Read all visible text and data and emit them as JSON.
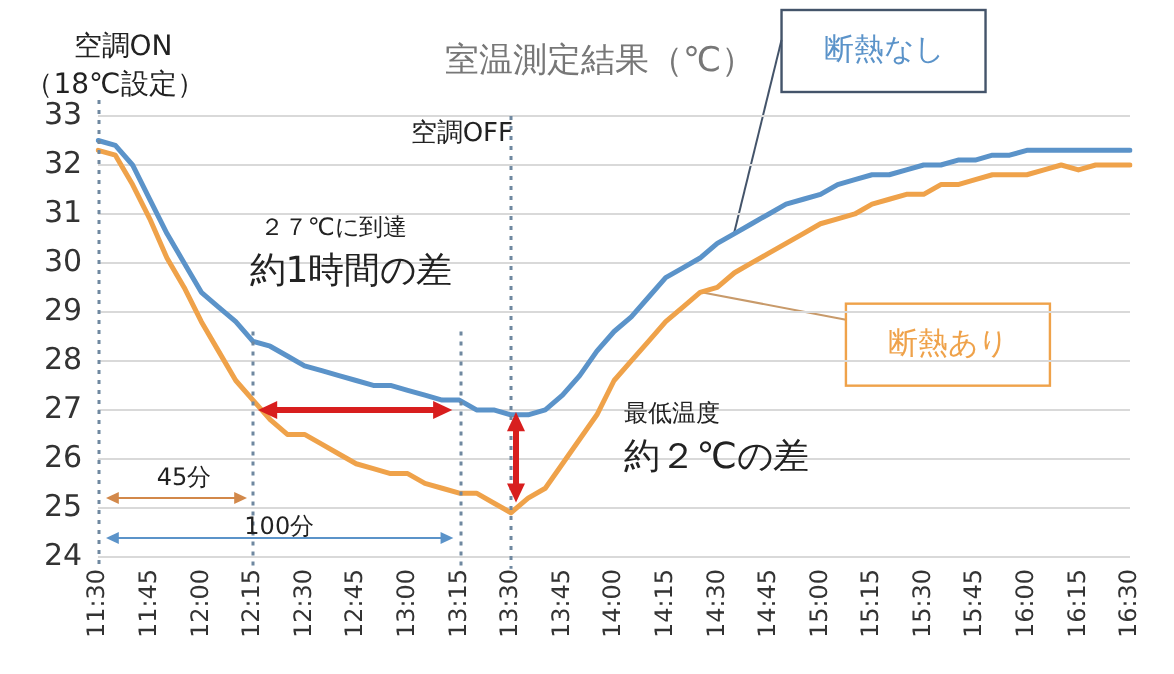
{
  "chart_data": {
    "type": "line",
    "title": "室温測定結果（℃）",
    "categories": [
      "11:30",
      null,
      null,
      "11:45",
      null,
      null,
      "12:00",
      null,
      null,
      "12:15",
      null,
      null,
      "12:30",
      null,
      null,
      "12:45",
      null,
      null,
      "13:00",
      null,
      null,
      "13:15",
      null,
      null,
      "13:30",
      null,
      null,
      "13:45",
      null,
      null,
      "14:00",
      null,
      null,
      "14:15",
      null,
      null,
      "14:30",
      null,
      null,
      "14:45",
      null,
      null,
      "15:00",
      null,
      null,
      "15:15",
      null,
      null,
      "15:30",
      null,
      null,
      "15:45",
      null,
      null,
      "16:00",
      null,
      null,
      "16:15",
      null,
      null,
      "16:30"
    ],
    "series": [
      {
        "name": "断熱なし",
        "color": "#5b93c9",
        "values": [
          32.5,
          32.4,
          32.0,
          31.3,
          30.6,
          30.0,
          29.4,
          29.1,
          28.8,
          28.4,
          28.3,
          28.1,
          27.9,
          27.8,
          27.7,
          27.6,
          27.5,
          27.5,
          27.4,
          27.3,
          27.2,
          27.2,
          27.0,
          27.0,
          26.9,
          26.9,
          27.0,
          27.3,
          27.7,
          28.2,
          28.6,
          28.9,
          29.3,
          29.7,
          29.9,
          30.1,
          30.4,
          30.6,
          30.8,
          31.0,
          31.2,
          31.3,
          31.4,
          31.6,
          31.7,
          31.8,
          31.8,
          31.9,
          32.0,
          32.0,
          32.1,
          32.1,
          32.2,
          32.2,
          32.3,
          32.3,
          32.3,
          32.3,
          32.3,
          32.3,
          32.3
        ]
      },
      {
        "name": "断熱あり",
        "color": "#efa24a",
        "values": [
          32.3,
          32.2,
          31.6,
          30.9,
          30.1,
          29.5,
          28.8,
          28.2,
          27.6,
          27.2,
          26.8,
          26.5,
          26.5,
          26.3,
          26.1,
          25.9,
          25.8,
          25.7,
          25.7,
          25.5,
          25.4,
          25.3,
          25.3,
          25.1,
          24.9,
          25.2,
          25.4,
          25.9,
          26.4,
          26.9,
          27.6,
          28.0,
          28.4,
          28.8,
          29.1,
          29.4,
          29.5,
          29.8,
          30.0,
          30.2,
          30.4,
          30.6,
          30.8,
          30.9,
          31.0,
          31.2,
          31.3,
          31.4,
          31.4,
          31.6,
          31.6,
          31.7,
          31.8,
          31.8,
          31.8,
          31.9,
          32.0,
          31.9,
          32.0,
          32.0,
          32.0
        ]
      }
    ],
    "ylim": [
      24,
      33
    ],
    "yticks": [
      24,
      25,
      26,
      27,
      28,
      29,
      30,
      31,
      32,
      33
    ],
    "grid": "y",
    "legend": false,
    "marker": "none",
    "line_style": "solid",
    "ref_lines": [
      {
        "axis": "x",
        "value": "11:30",
        "label": "空調ON\n（18℃設定）"
      },
      {
        "axis": "x",
        "value": "12:15"
      },
      {
        "axis": "x",
        "value": "13:15"
      },
      {
        "axis": "x",
        "value": "13:30",
        "label": "空調OFF"
      }
    ],
    "annotations": [
      "２７℃に到達",
      "約1時間の差",
      "最低温度",
      "約２℃の差",
      "45分",
      "100分"
    ]
  }
}
